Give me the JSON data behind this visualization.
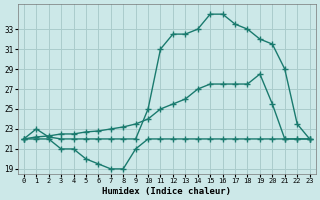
{
  "x_values": [
    0,
    1,
    2,
    3,
    4,
    5,
    6,
    7,
    8,
    9,
    10,
    11,
    12,
    13,
    14,
    15,
    16,
    17,
    18,
    19,
    20,
    21,
    22,
    23
  ],
  "series": [
    {
      "name": "line_bottom_wavy",
      "y": [
        22.0,
        22.0,
        22.0,
        21.0,
        21.0,
        20.0,
        19.5,
        19.0,
        19.0,
        21.0,
        22.0,
        22.0,
        22.0,
        22.0,
        22.0,
        22.0,
        22.0,
        22.0,
        22.0,
        22.0,
        22.0,
        22.0,
        22.0,
        22.0
      ]
    },
    {
      "name": "line_middle_diagonal",
      "y": [
        22.0,
        22.2,
        22.3,
        22.5,
        22.5,
        22.7,
        22.8,
        23.0,
        23.2,
        23.5,
        24.0,
        25.0,
        25.5,
        26.0,
        27.0,
        27.5,
        27.5,
        27.5,
        27.5,
        28.5,
        25.5,
        22.0,
        22.0,
        22.0
      ]
    },
    {
      "name": "line_top_peaked",
      "y": [
        22.0,
        23.0,
        22.2,
        22.0,
        22.0,
        22.0,
        22.0,
        22.0,
        22.0,
        22.0,
        25.0,
        31.0,
        32.5,
        32.5,
        33.0,
        34.5,
        34.5,
        33.5,
        33.0,
        32.0,
        31.5,
        29.0,
        23.5,
        22.0
      ]
    }
  ],
  "color": "#1a7a6e",
  "background_color": "#cce8e8",
  "grid_color": "#aacccc",
  "xlabel": "Humidex (Indice chaleur)",
  "xlim": [
    -0.5,
    23.5
  ],
  "ylim": [
    18.5,
    35.5
  ],
  "yticks": [
    19,
    21,
    23,
    25,
    27,
    29,
    31,
    33
  ],
  "xticks": [
    0,
    1,
    2,
    3,
    4,
    5,
    6,
    7,
    8,
    9,
    10,
    11,
    12,
    13,
    14,
    15,
    16,
    17,
    18,
    19,
    20,
    21,
    22,
    23
  ],
  "marker": "+",
  "markersize": 4,
  "markeredgewidth": 1.0,
  "linewidth": 1.0
}
